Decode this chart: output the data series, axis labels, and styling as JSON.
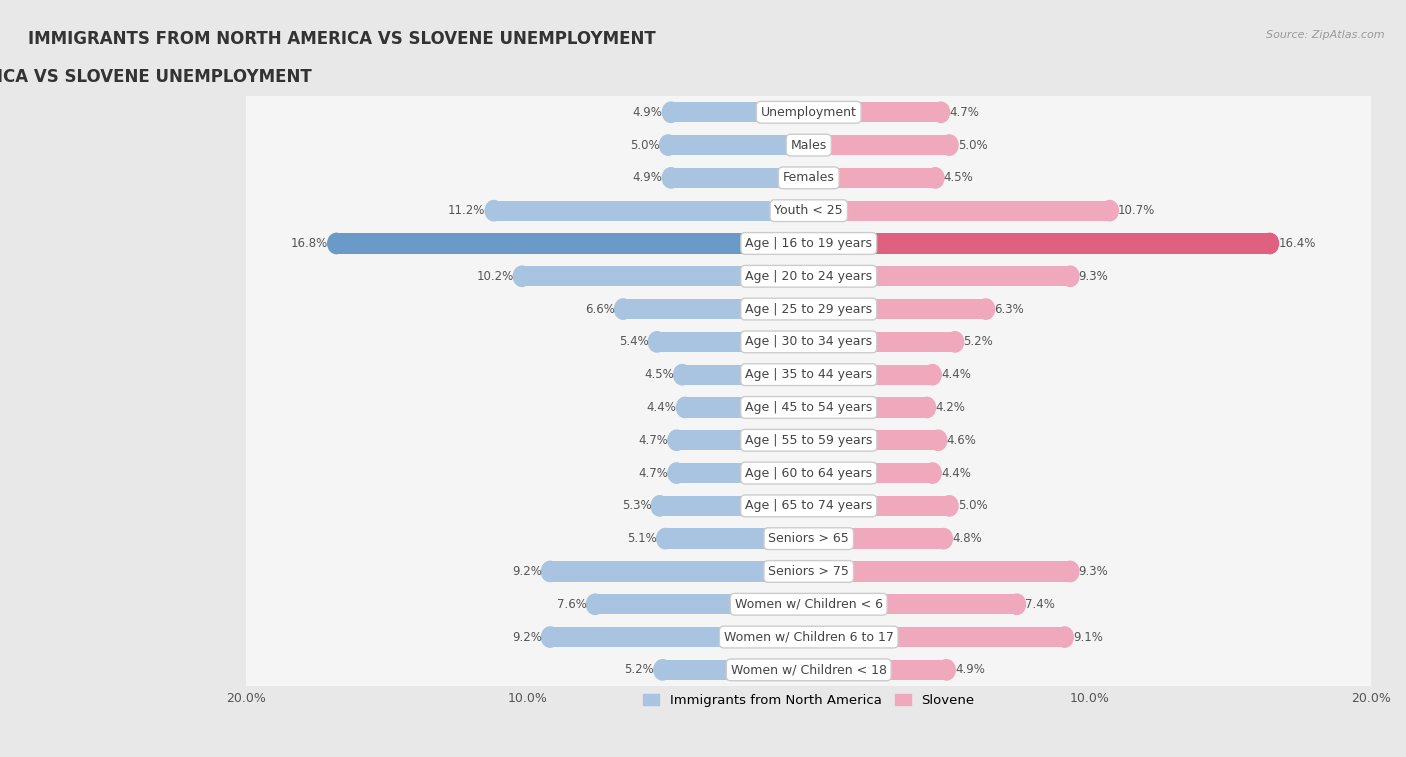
{
  "title": "IMMIGRANTS FROM NORTH AMERICA VS SLOVENE UNEMPLOYMENT",
  "source": "Source: ZipAtlas.com",
  "categories": [
    "Unemployment",
    "Males",
    "Females",
    "Youth < 25",
    "Age | 16 to 19 years",
    "Age | 20 to 24 years",
    "Age | 25 to 29 years",
    "Age | 30 to 34 years",
    "Age | 35 to 44 years",
    "Age | 45 to 54 years",
    "Age | 55 to 59 years",
    "Age | 60 to 64 years",
    "Age | 65 to 74 years",
    "Seniors > 65",
    "Seniors > 75",
    "Women w/ Children < 6",
    "Women w/ Children 6 to 17",
    "Women w/ Children < 18"
  ],
  "left_values": [
    4.9,
    5.0,
    4.9,
    11.2,
    16.8,
    10.2,
    6.6,
    5.4,
    4.5,
    4.4,
    4.7,
    4.7,
    5.3,
    5.1,
    9.2,
    7.6,
    9.2,
    5.2
  ],
  "right_values": [
    4.7,
    5.0,
    4.5,
    10.7,
    16.4,
    9.3,
    6.3,
    5.2,
    4.4,
    4.2,
    4.6,
    4.4,
    5.0,
    4.8,
    9.3,
    7.4,
    9.1,
    4.9
  ],
  "left_color": "#a8c4e0",
  "right_color": "#f0a8bc",
  "left_color_highlight": "#6a9bc8",
  "right_color_highlight": "#e06080",
  "left_label": "Immigrants from North America",
  "right_label": "Slovene",
  "axis_max": 20.0,
  "bg_color": "#e8e8e8",
  "row_color": "#f5f5f5",
  "label_fontsize": 9.0,
  "title_fontsize": 12,
  "value_fontsize": 8.5,
  "highlight_row": 4
}
